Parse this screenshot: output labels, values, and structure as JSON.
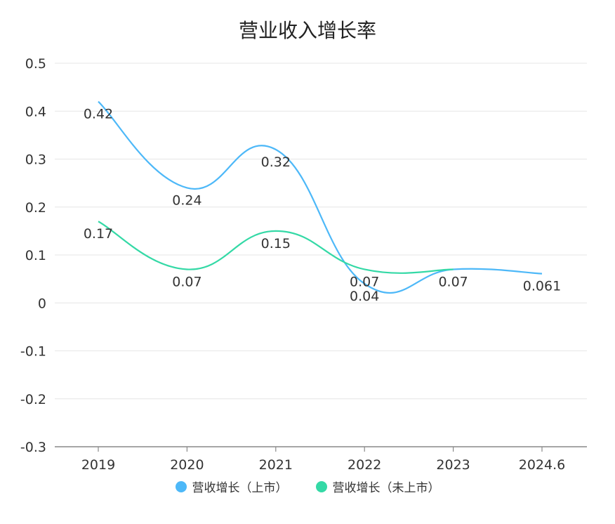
{
  "chart_data": {
    "type": "line",
    "title": "营业收入增长率",
    "categories": [
      "2019",
      "2020",
      "2021",
      "2022",
      "2023",
      "2024.6"
    ],
    "ylim": [
      -0.3,
      0.5
    ],
    "yticks": [
      "0.5",
      "0.4",
      "0.3",
      "0.2",
      "0.1",
      "0",
      "-0.1",
      "-0.2",
      "-0.3"
    ],
    "ytick_values": [
      0.5,
      0.4,
      0.3,
      0.2,
      0.1,
      0,
      -0.1,
      -0.2,
      -0.3
    ],
    "grid": true,
    "legend_position": "bottom",
    "series": [
      {
        "name": "营收增长（上市）",
        "color": "#4db8f8",
        "values": [
          0.42,
          0.24,
          0.32,
          0.04,
          0.07,
          0.061
        ],
        "labels": [
          "0.42",
          "0.24",
          "0.32",
          "0.04",
          "0.07",
          "0.061"
        ]
      },
      {
        "name": "营收增长（未上市）",
        "color": "#34d9a6",
        "values": [
          0.17,
          0.07,
          0.15,
          0.07,
          0.07,
          null
        ],
        "labels": [
          "0.17",
          "0.07",
          "0.15",
          "0.07",
          "",
          ""
        ]
      }
    ]
  }
}
